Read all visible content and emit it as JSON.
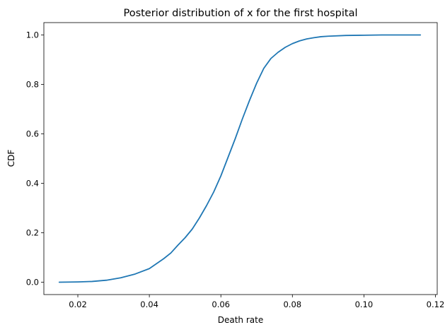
{
  "chart_data": {
    "type": "line",
    "title": "Posterior distribution of x for the first hospital",
    "xlabel": "Death rate",
    "ylabel": "CDF",
    "xlim": [
      0.0105,
      0.1205
    ],
    "ylim": [
      -0.05,
      1.05
    ],
    "xticks": [
      0.02,
      0.04,
      0.06,
      0.08,
      0.1,
      0.12
    ],
    "xtick_labels": [
      "0.02",
      "0.04",
      "0.06",
      "0.08",
      "0.10",
      "0.12"
    ],
    "yticks": [
      0.0,
      0.2,
      0.4,
      0.6,
      0.8,
      1.0
    ],
    "ytick_labels": [
      "0.0",
      "0.2",
      "0.4",
      "0.6",
      "0.8",
      "1.0"
    ],
    "grid": false,
    "legend": "none",
    "series": [
      {
        "color": "#1f77b4",
        "x": [
          0.0148,
          0.02,
          0.024,
          0.028,
          0.032,
          0.036,
          0.04,
          0.044,
          0.046,
          0.048,
          0.05,
          0.052,
          0.054,
          0.056,
          0.058,
          0.06,
          0.062,
          0.064,
          0.066,
          0.068,
          0.07,
          0.072,
          0.074,
          0.076,
          0.078,
          0.08,
          0.082,
          0.084,
          0.086,
          0.088,
          0.09,
          0.095,
          0.1,
          0.105,
          0.11,
          0.1158
        ],
        "y": [
          0.0,
          0.001,
          0.003,
          0.008,
          0.018,
          0.033,
          0.055,
          0.095,
          0.118,
          0.15,
          0.18,
          0.215,
          0.26,
          0.31,
          0.365,
          0.43,
          0.505,
          0.58,
          0.66,
          0.735,
          0.805,
          0.865,
          0.905,
          0.93,
          0.95,
          0.965,
          0.976,
          0.984,
          0.989,
          0.993,
          0.995,
          0.998,
          0.999,
          1.0,
          1.0,
          1.0
        ]
      }
    ]
  }
}
